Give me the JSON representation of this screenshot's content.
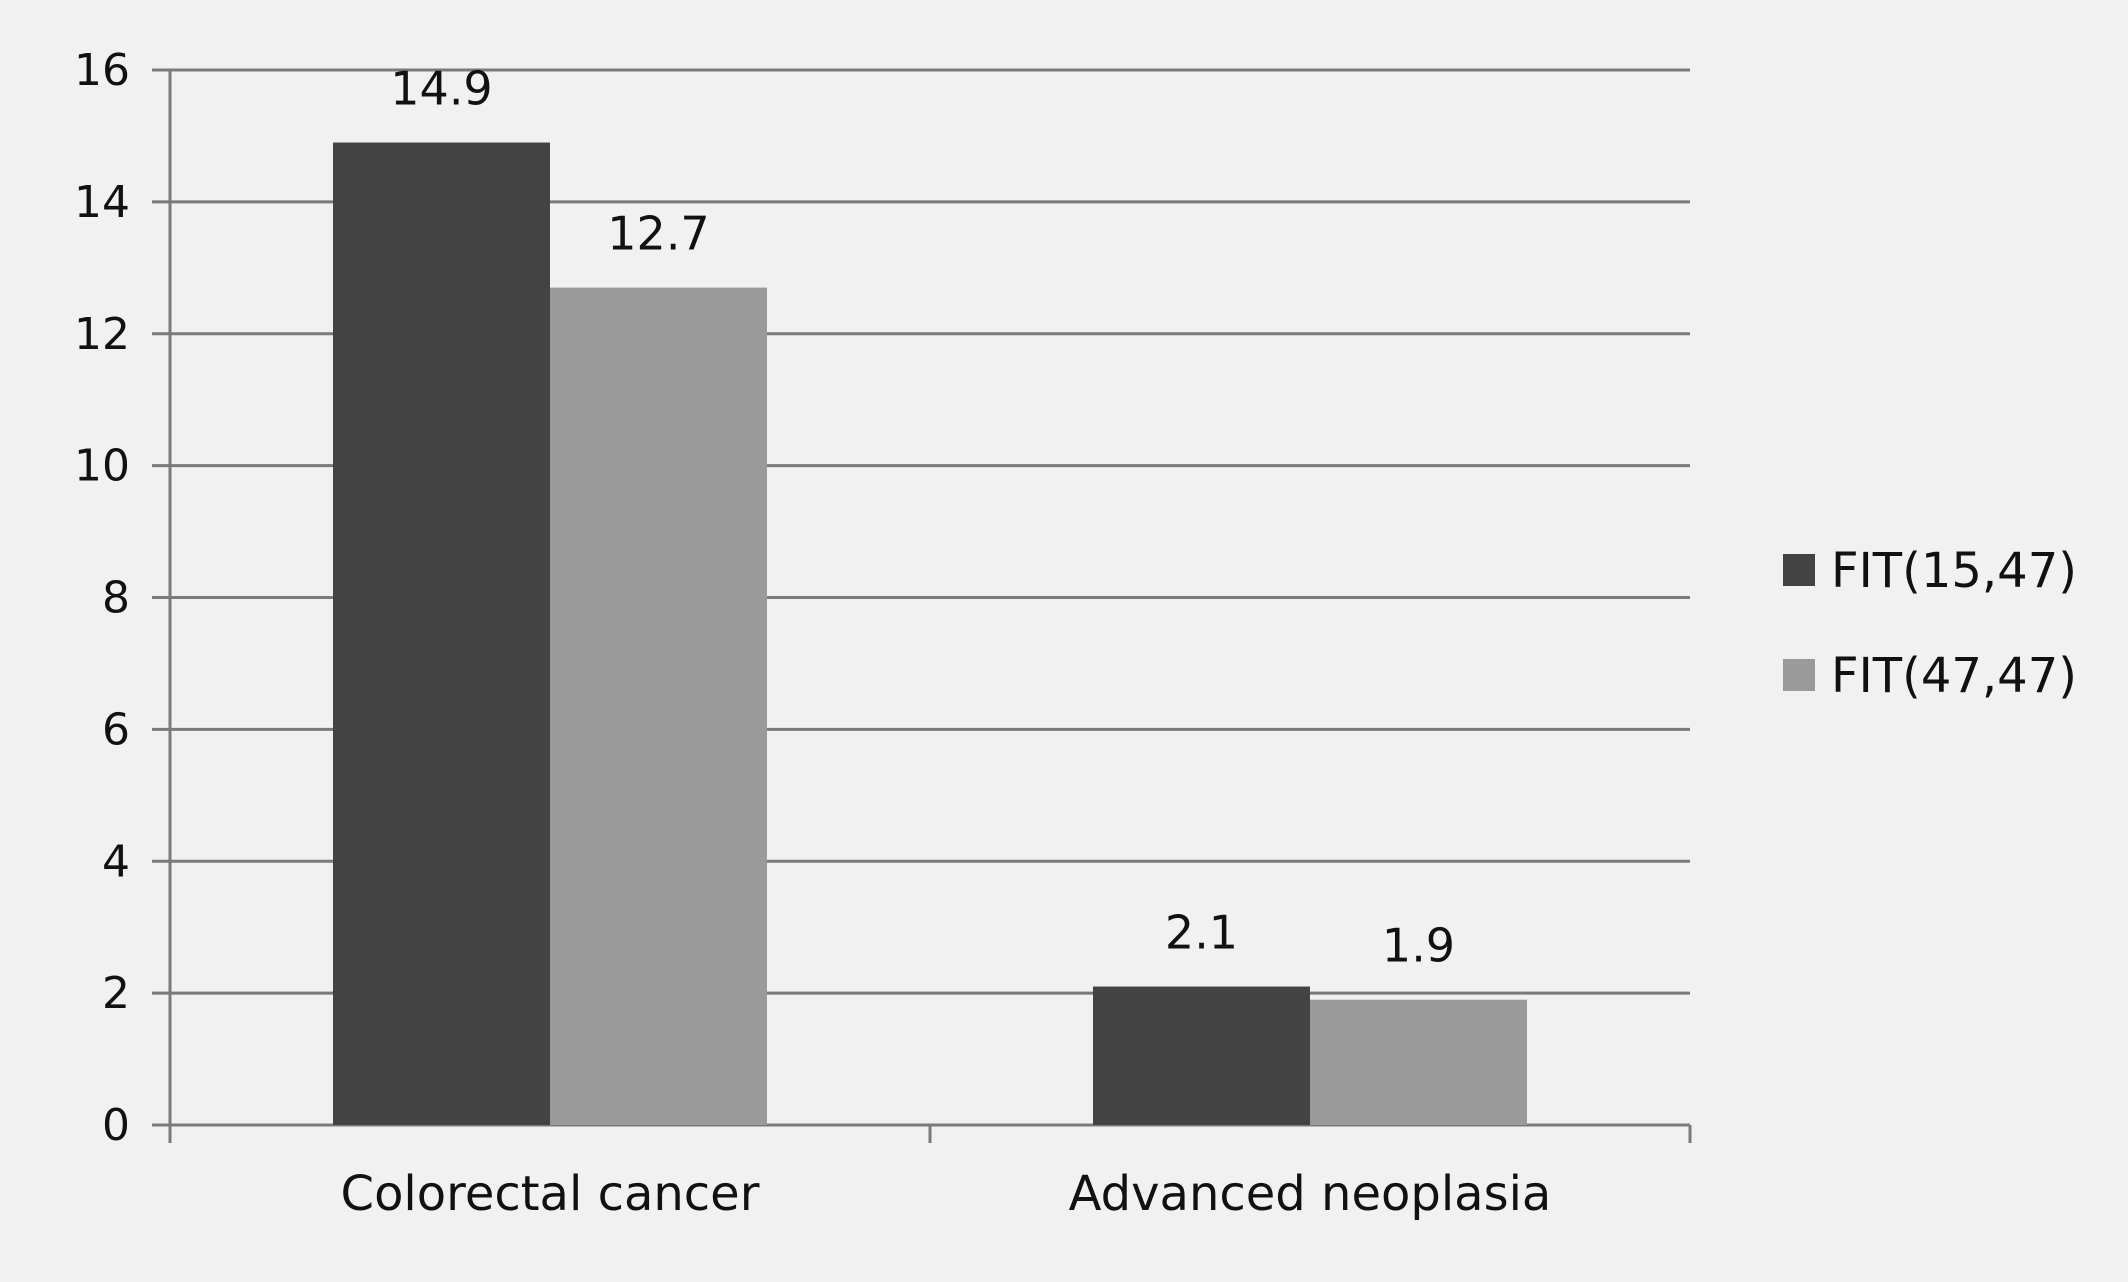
{
  "chart_data": {
    "type": "bar",
    "title": "",
    "xlabel": "",
    "ylabel": "",
    "categories": [
      "Colorectal cancer",
      "Advanced neoplasia"
    ],
    "series": [
      {
        "name": "FIT(15,47)",
        "values": [
          14.9,
          2.1
        ],
        "color": "#434343"
      },
      {
        "name": "FIT(47,47)",
        "values": [
          12.7,
          1.9
        ],
        "color": "#9a9a9a"
      }
    ],
    "data_labels": [
      [
        "14.9",
        "2.1"
      ],
      [
        "12.7",
        "1.9"
      ]
    ],
    "ylim": [
      0,
      16
    ],
    "y_ticks": [
      0,
      2,
      4,
      6,
      8,
      10,
      12,
      14,
      16
    ],
    "grid": true,
    "legend_position": "right"
  }
}
